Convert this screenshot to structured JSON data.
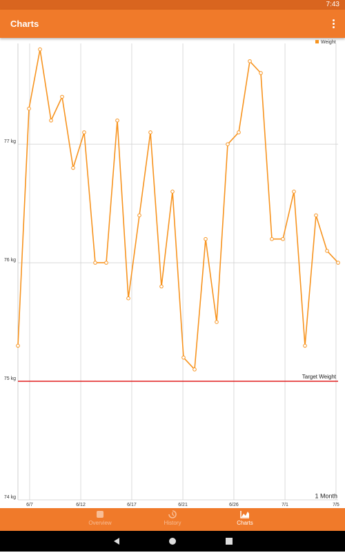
{
  "status_bar": {
    "time": "7:43"
  },
  "app_bar": {
    "title": "Charts"
  },
  "chart_data": {
    "type": "line",
    "series": [
      {
        "name": "Weight",
        "color": "#f7931e",
        "values": [
          75.3,
          77.3,
          77.8,
          77.2,
          77.4,
          76.8,
          77.1,
          76.0,
          76.0,
          77.2,
          75.7,
          76.4,
          77.1,
          75.8,
          76.6,
          75.2,
          75.1,
          76.2,
          75.5,
          77.0,
          77.1,
          77.7,
          77.6,
          76.2,
          76.2,
          76.6,
          75.3,
          76.4,
          76.1,
          76.0
        ]
      }
    ],
    "xlim": [
      0,
      29
    ],
    "xticks": [
      {
        "value": 1.06,
        "label": "6/7"
      },
      {
        "value": 5.69,
        "label": "6/12"
      },
      {
        "value": 10.31,
        "label": "6/17"
      },
      {
        "value": 14.94,
        "label": "6/21"
      },
      {
        "value": 19.56,
        "label": "6/26"
      },
      {
        "value": 24.19,
        "label": "7/1"
      },
      {
        "value": 28.81,
        "label": "7/5"
      }
    ],
    "ylim": [
      74,
      77.85
    ],
    "yticks": [
      {
        "value": 74,
        "label": "74 kg"
      },
      {
        "value": 75,
        "label": "75 kg"
      },
      {
        "value": 76,
        "label": "76 kg"
      },
      {
        "value": 77,
        "label": "77 kg"
      }
    ],
    "target": {
      "value": 75,
      "label": "Target Weight",
      "color": "#e01b1b"
    },
    "range_label": "1 Month",
    "legend": "top-right",
    "grid": true
  },
  "bottom_nav": {
    "items": [
      {
        "label": "Overview",
        "active": false
      },
      {
        "label": "History",
        "active": false
      },
      {
        "label": "Charts",
        "active": true
      }
    ]
  }
}
